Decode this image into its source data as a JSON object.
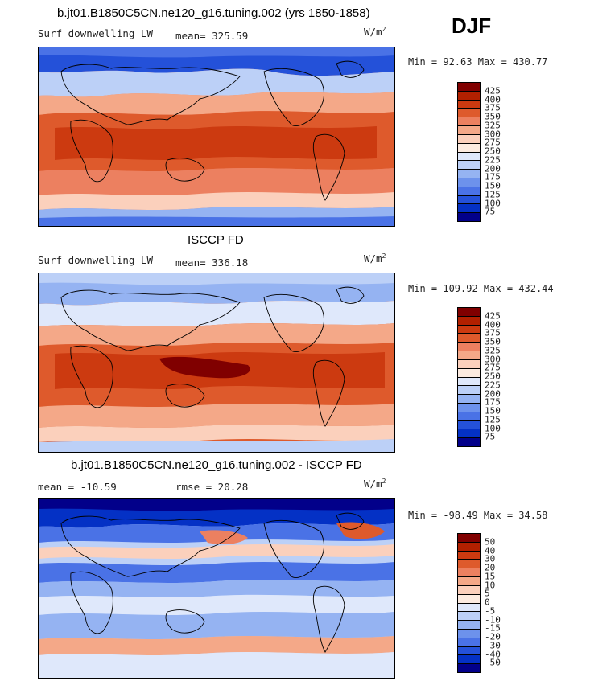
{
  "season": "DJF",
  "panels": [
    {
      "title": "b.jt01.B1850C5CN.ne120_g16.tuning.002 (yrs 1850-1858)",
      "left_label": "Surf downwelling LW",
      "mean_label": "mean= 325.59",
      "units": "W/m",
      "units_sup": "2",
      "minmax": "Min =  92.63 Max = 430.77",
      "colorbar": {
        "levels": [
          "425",
          "400",
          "375",
          "350",
          "325",
          "300",
          "275",
          "250",
          "225",
          "200",
          "175",
          "150",
          "125",
          "100",
          "75"
        ],
        "colors": [
          "#800000",
          "#b22000",
          "#cc3a10",
          "#de5a2c",
          "#ec8060",
          "#f4a888",
          "#fbd0bc",
          "#fcebe0",
          "#dfe8fb",
          "#bcd0f7",
          "#95b3f2",
          "#6d92ec",
          "#4a72e6",
          "#2451d9",
          "#0431c5",
          "#02008a"
        ]
      }
    },
    {
      "title": "ISCCP FD",
      "left_label": "Surf downwelling LW",
      "mean_label": "mean= 336.18",
      "units": "W/m",
      "units_sup": "2",
      "minmax": "Min = 109.92 Max = 432.44",
      "colorbar": {
        "levels": [
          "425",
          "400",
          "375",
          "350",
          "325",
          "300",
          "275",
          "250",
          "225",
          "200",
          "175",
          "150",
          "125",
          "100",
          "75"
        ],
        "colors": [
          "#800000",
          "#b22000",
          "#cc3a10",
          "#de5a2c",
          "#ec8060",
          "#f4a888",
          "#fbd0bc",
          "#fcebe0",
          "#dfe8fb",
          "#bcd0f7",
          "#95b3f2",
          "#6d92ec",
          "#4a72e6",
          "#2451d9",
          "#0431c5",
          "#02008a"
        ]
      }
    },
    {
      "title": "b.jt01.B1850C5CN.ne120_g16.tuning.002 - ISCCP FD",
      "left_label": "mean = -10.59",
      "mean_label": "rmse =  20.28",
      "units": "W/m",
      "units_sup": "2",
      "minmax": "Min = -98.49 Max =  34.58",
      "colorbar": {
        "levels": [
          "50",
          "40",
          "30",
          "20",
          "15",
          "10",
          "5",
          "0",
          "-5",
          "-10",
          "-15",
          "-20",
          "-30",
          "-40",
          "-50"
        ],
        "colors": [
          "#800000",
          "#b22000",
          "#cc3a10",
          "#de5a2c",
          "#ec8060",
          "#f4a888",
          "#fbd0bc",
          "#fcebe0",
          "#dfe8fb",
          "#bcd0f7",
          "#95b3f2",
          "#6d92ec",
          "#4a72e6",
          "#2451d9",
          "#0431c5",
          "#02008a"
        ]
      }
    }
  ]
}
